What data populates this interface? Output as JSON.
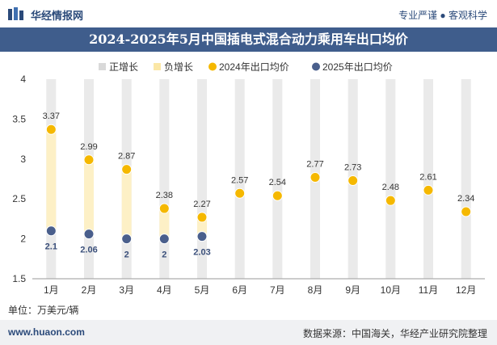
{
  "header": {
    "brand": "华经情报网",
    "slogan": "专业严谨 ● 客观科学"
  },
  "chart_data": {
    "type": "bar",
    "title": "2024-2025年5月中国插电式混合动力乘用车出口均价",
    "unit_label": "单位：万美元/辆",
    "categories": [
      "1月",
      "2月",
      "3月",
      "4月",
      "5月",
      "6月",
      "7月",
      "8月",
      "9月",
      "10月",
      "11月",
      "12月"
    ],
    "ylim": [
      1.5,
      4
    ],
    "yticks": [
      1.5,
      2,
      2.5,
      3,
      3.5,
      4
    ],
    "legend_position": "top",
    "legend": [
      "正增长",
      "负增长",
      "2024年出口均价",
      "2025年出口均价"
    ],
    "series": [
      {
        "name": "2024年出口均价",
        "type": "scatter",
        "color": "#f5b800",
        "values": [
          3.37,
          2.99,
          2.87,
          2.38,
          2.27,
          2.57,
          2.54,
          2.77,
          2.73,
          2.48,
          2.61,
          2.34
        ]
      },
      {
        "name": "2025年出口均价",
        "type": "scatter",
        "color": "#4a5f8c",
        "values": [
          2.1,
          2.06,
          2.0,
          2.0,
          2.03
        ]
      }
    ],
    "growth_bars": {
      "positive_color": "#d9d9d9",
      "negative_color": "#fdf0c6"
    }
  },
  "footer": {
    "site": "www.huaon.com",
    "source": "数据来源：中国海关，华经产业研究院整理"
  }
}
